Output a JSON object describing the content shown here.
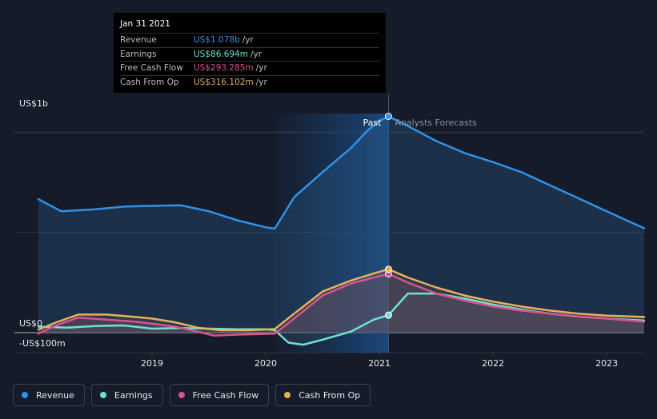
{
  "colors": {
    "background": "#151b28",
    "revenue": "#2e93e8",
    "earnings": "#6fe3d3",
    "free_cash_flow": "#d9538f",
    "cash_from_op": "#e8b05b"
  },
  "tooltip": {
    "date": "Jan 31 2021",
    "unit": "/yr",
    "rows": [
      {
        "label": "Revenue",
        "value": "US$1.078b",
        "color": "#2e93e8"
      },
      {
        "label": "Earnings",
        "value": "US$86.694m",
        "color": "#6fe3d3"
      },
      {
        "label": "Free Cash Flow",
        "value": "US$293.285m",
        "color": "#d9538f"
      },
      {
        "label": "Cash From Op",
        "value": "US$316.102m",
        "color": "#e8b05b"
      }
    ]
  },
  "chart_data": {
    "type": "line",
    "title": "",
    "xlabel": "",
    "ylabel": "",
    "x_range": [
      2018.0,
      2023.33
    ],
    "ylim": [
      -100,
      1080
    ],
    "y_tick_labels": [
      {
        "value": 1000,
        "label": "US$1b"
      },
      {
        "value": 0,
        "label": "US$0"
      },
      {
        "value": -100,
        "label": "-US$100m"
      }
    ],
    "x_ticks": [
      {
        "value": 2019.0,
        "label": "2019"
      },
      {
        "value": 2020.0,
        "label": "2020"
      },
      {
        "value": 2021.0,
        "label": "2021"
      },
      {
        "value": 2022.0,
        "label": "2022"
      },
      {
        "value": 2023.0,
        "label": "2023"
      }
    ],
    "highlight_x": [
      2020.08,
      2021.08
    ],
    "divider_x": 2021.08,
    "past_label": "Past",
    "forecast_label": "Analysts Forecasts",
    "series": [
      {
        "name": "Revenue",
        "key": "revenue",
        "values": [
          [
            2018.0,
            665
          ],
          [
            2018.2,
            605
          ],
          [
            2018.5,
            615
          ],
          [
            2018.75,
            628
          ],
          [
            2019.0,
            632
          ],
          [
            2019.25,
            635
          ],
          [
            2019.5,
            605
          ],
          [
            2019.75,
            560
          ],
          [
            2020.0,
            525
          ],
          [
            2020.08,
            518
          ],
          [
            2020.25,
            675
          ],
          [
            2020.5,
            800
          ],
          [
            2020.75,
            920
          ],
          [
            2020.9,
            1010
          ],
          [
            2021.0,
            1055
          ],
          [
            2021.08,
            1078
          ],
          [
            2021.25,
            1030
          ],
          [
            2021.5,
            955
          ],
          [
            2021.75,
            895
          ],
          [
            2022.0,
            850
          ],
          [
            2022.25,
            800
          ],
          [
            2022.5,
            735
          ],
          [
            2022.75,
            670
          ],
          [
            2023.0,
            605
          ],
          [
            2023.33,
            520
          ]
        ]
      },
      {
        "name": "Earnings",
        "key": "earnings",
        "values": [
          [
            2018.0,
            30
          ],
          [
            2018.25,
            25
          ],
          [
            2018.5,
            33
          ],
          [
            2018.75,
            36
          ],
          [
            2019.0,
            20
          ],
          [
            2019.25,
            23
          ],
          [
            2019.5,
            20
          ],
          [
            2019.75,
            17
          ],
          [
            2020.0,
            17
          ],
          [
            2020.08,
            12
          ],
          [
            2020.2,
            -50
          ],
          [
            2020.33,
            -60
          ],
          [
            2020.5,
            -35
          ],
          [
            2020.75,
            5
          ],
          [
            2020.95,
            65
          ],
          [
            2021.08,
            87
          ],
          [
            2021.25,
            195
          ],
          [
            2021.5,
            195
          ],
          [
            2021.75,
            170
          ],
          [
            2022.0,
            140
          ],
          [
            2022.25,
            115
          ],
          [
            2022.5,
            95
          ],
          [
            2022.75,
            80
          ],
          [
            2023.0,
            70
          ],
          [
            2023.33,
            60
          ]
        ]
      },
      {
        "name": "Free Cash Flow",
        "key": "free_cash_flow",
        "values": [
          [
            2018.0,
            -5
          ],
          [
            2018.15,
            35
          ],
          [
            2018.35,
            75
          ],
          [
            2018.6,
            65
          ],
          [
            2018.85,
            55
          ],
          [
            2019.0,
            45
          ],
          [
            2019.2,
            30
          ],
          [
            2019.4,
            5
          ],
          [
            2019.55,
            -15
          ],
          [
            2019.75,
            -10
          ],
          [
            2020.08,
            -5
          ],
          [
            2020.25,
            70
          ],
          [
            2020.5,
            185
          ],
          [
            2020.75,
            245
          ],
          [
            2020.95,
            275
          ],
          [
            2021.08,
            293
          ],
          [
            2021.25,
            250
          ],
          [
            2021.5,
            195
          ],
          [
            2021.75,
            160
          ],
          [
            2022.0,
            130
          ],
          [
            2022.25,
            110
          ],
          [
            2022.5,
            95
          ],
          [
            2022.75,
            80
          ],
          [
            2023.0,
            70
          ],
          [
            2023.33,
            55
          ]
        ]
      },
      {
        "name": "Cash From Op",
        "key": "cash_from_op",
        "values": [
          [
            2018.0,
            15
          ],
          [
            2018.15,
            50
          ],
          [
            2018.35,
            90
          ],
          [
            2018.6,
            90
          ],
          [
            2018.85,
            78
          ],
          [
            2019.0,
            70
          ],
          [
            2019.2,
            52
          ],
          [
            2019.4,
            25
          ],
          [
            2019.6,
            12
          ],
          [
            2019.85,
            12
          ],
          [
            2020.08,
            18
          ],
          [
            2020.25,
            95
          ],
          [
            2020.5,
            205
          ],
          [
            2020.75,
            260
          ],
          [
            2020.95,
            295
          ],
          [
            2021.08,
            316
          ],
          [
            2021.25,
            275
          ],
          [
            2021.5,
            225
          ],
          [
            2021.75,
            185
          ],
          [
            2022.0,
            155
          ],
          [
            2022.25,
            130
          ],
          [
            2022.5,
            110
          ],
          [
            2022.75,
            95
          ],
          [
            2023.0,
            85
          ],
          [
            2023.33,
            78
          ]
        ]
      }
    ]
  },
  "legend": [
    {
      "label": "Revenue",
      "key": "revenue",
      "color": "#2e93e8"
    },
    {
      "label": "Earnings",
      "key": "earnings",
      "color": "#6fe3d3"
    },
    {
      "label": "Free Cash Flow",
      "key": "free_cash_flow",
      "color": "#d9538f"
    },
    {
      "label": "Cash From Op",
      "key": "cash_from_op",
      "color": "#e8b05b"
    }
  ]
}
